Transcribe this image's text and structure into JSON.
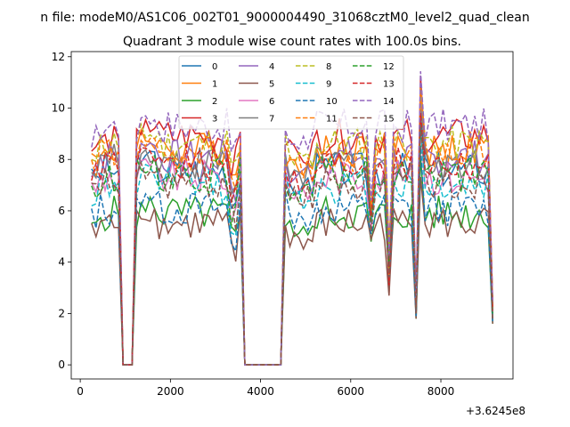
{
  "figure": {
    "suptitle": "n file: modeM0/AS1C06_002T01_9000004490_31068cztM0_level2_quad_clean"
  },
  "chart_data": {
    "type": "line",
    "title": "Quadrant 3 module wise count rates with 100.0s bins.",
    "xlabel": "",
    "ylabel": "",
    "xlim": [
      -200,
      9600
    ],
    "ylim": [
      -0.55,
      12.2
    ],
    "x_offset_label": "+3.6245e8",
    "x_ticks": [
      0,
      2000,
      4000,
      6000,
      8000
    ],
    "x_tick_labels": [
      "0",
      "2000",
      "4000",
      "6000",
      "8000"
    ],
    "y_ticks": [
      0,
      2,
      4,
      6,
      8,
      10,
      12
    ],
    "y_tick_labels": [
      "0",
      "2",
      "4",
      "6",
      "8",
      "10",
      "12"
    ],
    "legend": {
      "placement": "top-center",
      "columns": 4
    },
    "x_start": 250,
    "x_step": 100,
    "gap": {
      "start": 850,
      "end": 1200,
      "value": 0,
      "note": "all modules read 0 between about 850 and 1200"
    },
    "gap2": {
      "start": 3550,
      "end": 4500,
      "value": 0,
      "note": "all modules read 0 between about 3550 and 4500"
    },
    "series": [
      {
        "name": "0",
        "color": "#1f77b4",
        "dash": "solid",
        "level": 7.6,
        "dips": [
          5.4,
          4.5,
          2.0
        ]
      },
      {
        "name": "1",
        "color": "#ff7f0e",
        "dash": "solid",
        "level": 8.4,
        "dips": [
          5.8,
          4.8,
          2.4
        ]
      },
      {
        "name": "2",
        "color": "#2ca02c",
        "dash": "solid",
        "level": 5.9,
        "dips": [
          4.8,
          3.5,
          1.8
        ]
      },
      {
        "name": "3",
        "color": "#d62728",
        "dash": "solid",
        "level": 8.9,
        "dips": [
          5.6,
          2.7,
          2.6
        ]
      },
      {
        "name": "4",
        "color": "#9467bd",
        "dash": "solid",
        "level": 8.1,
        "dips": [
          5.9,
          3.7,
          2.5
        ]
      },
      {
        "name": "5",
        "color": "#8c564b",
        "dash": "solid",
        "level": 5.5,
        "dips": [
          4.9,
          2.7,
          1.8
        ]
      },
      {
        "name": "6",
        "color": "#e377c2",
        "dash": "solid",
        "level": 7.3,
        "dips": [
          5.3,
          3.9,
          2.2
        ]
      },
      {
        "name": "7",
        "color": "#7f7f7f",
        "dash": "solid",
        "level": 7.9,
        "dips": [
          5.6,
          4.1,
          2.3
        ]
      },
      {
        "name": "8",
        "color": "#bcbd22",
        "dash": "dashed",
        "level": 8.6,
        "dips": [
          6.0,
          4.3,
          2.6
        ]
      },
      {
        "name": "9",
        "color": "#17becf",
        "dash": "dashed",
        "level": 7.0,
        "dips": [
          5.5,
          4.0,
          2.1
        ]
      },
      {
        "name": "10",
        "color": "#1f77b4",
        "dash": "dashed",
        "level": 6.1,
        "dips": [
          5.1,
          3.3,
          1.9
        ]
      },
      {
        "name": "11",
        "color": "#ff7f0e",
        "dash": "dashed",
        "level": 8.2,
        "dips": [
          6.1,
          3.5,
          2.4
        ]
      },
      {
        "name": "12",
        "color": "#2ca02c",
        "dash": "dashed",
        "level": 7.4,
        "dips": [
          5.6,
          3.8,
          2.2
        ]
      },
      {
        "name": "13",
        "color": "#d62728",
        "dash": "dashed",
        "level": 7.8,
        "dips": [
          5.8,
          3.1,
          2.3
        ]
      },
      {
        "name": "14",
        "color": "#9467bd",
        "dash": "dashed",
        "level": 9.3,
        "dips": [
          6.4,
          4.2,
          2.6
        ]
      },
      {
        "name": "15",
        "color": "#8c564b",
        "dash": "dashed",
        "level": 7.1,
        "dips": [
          5.2,
          3.4,
          2.0
        ]
      }
    ]
  }
}
